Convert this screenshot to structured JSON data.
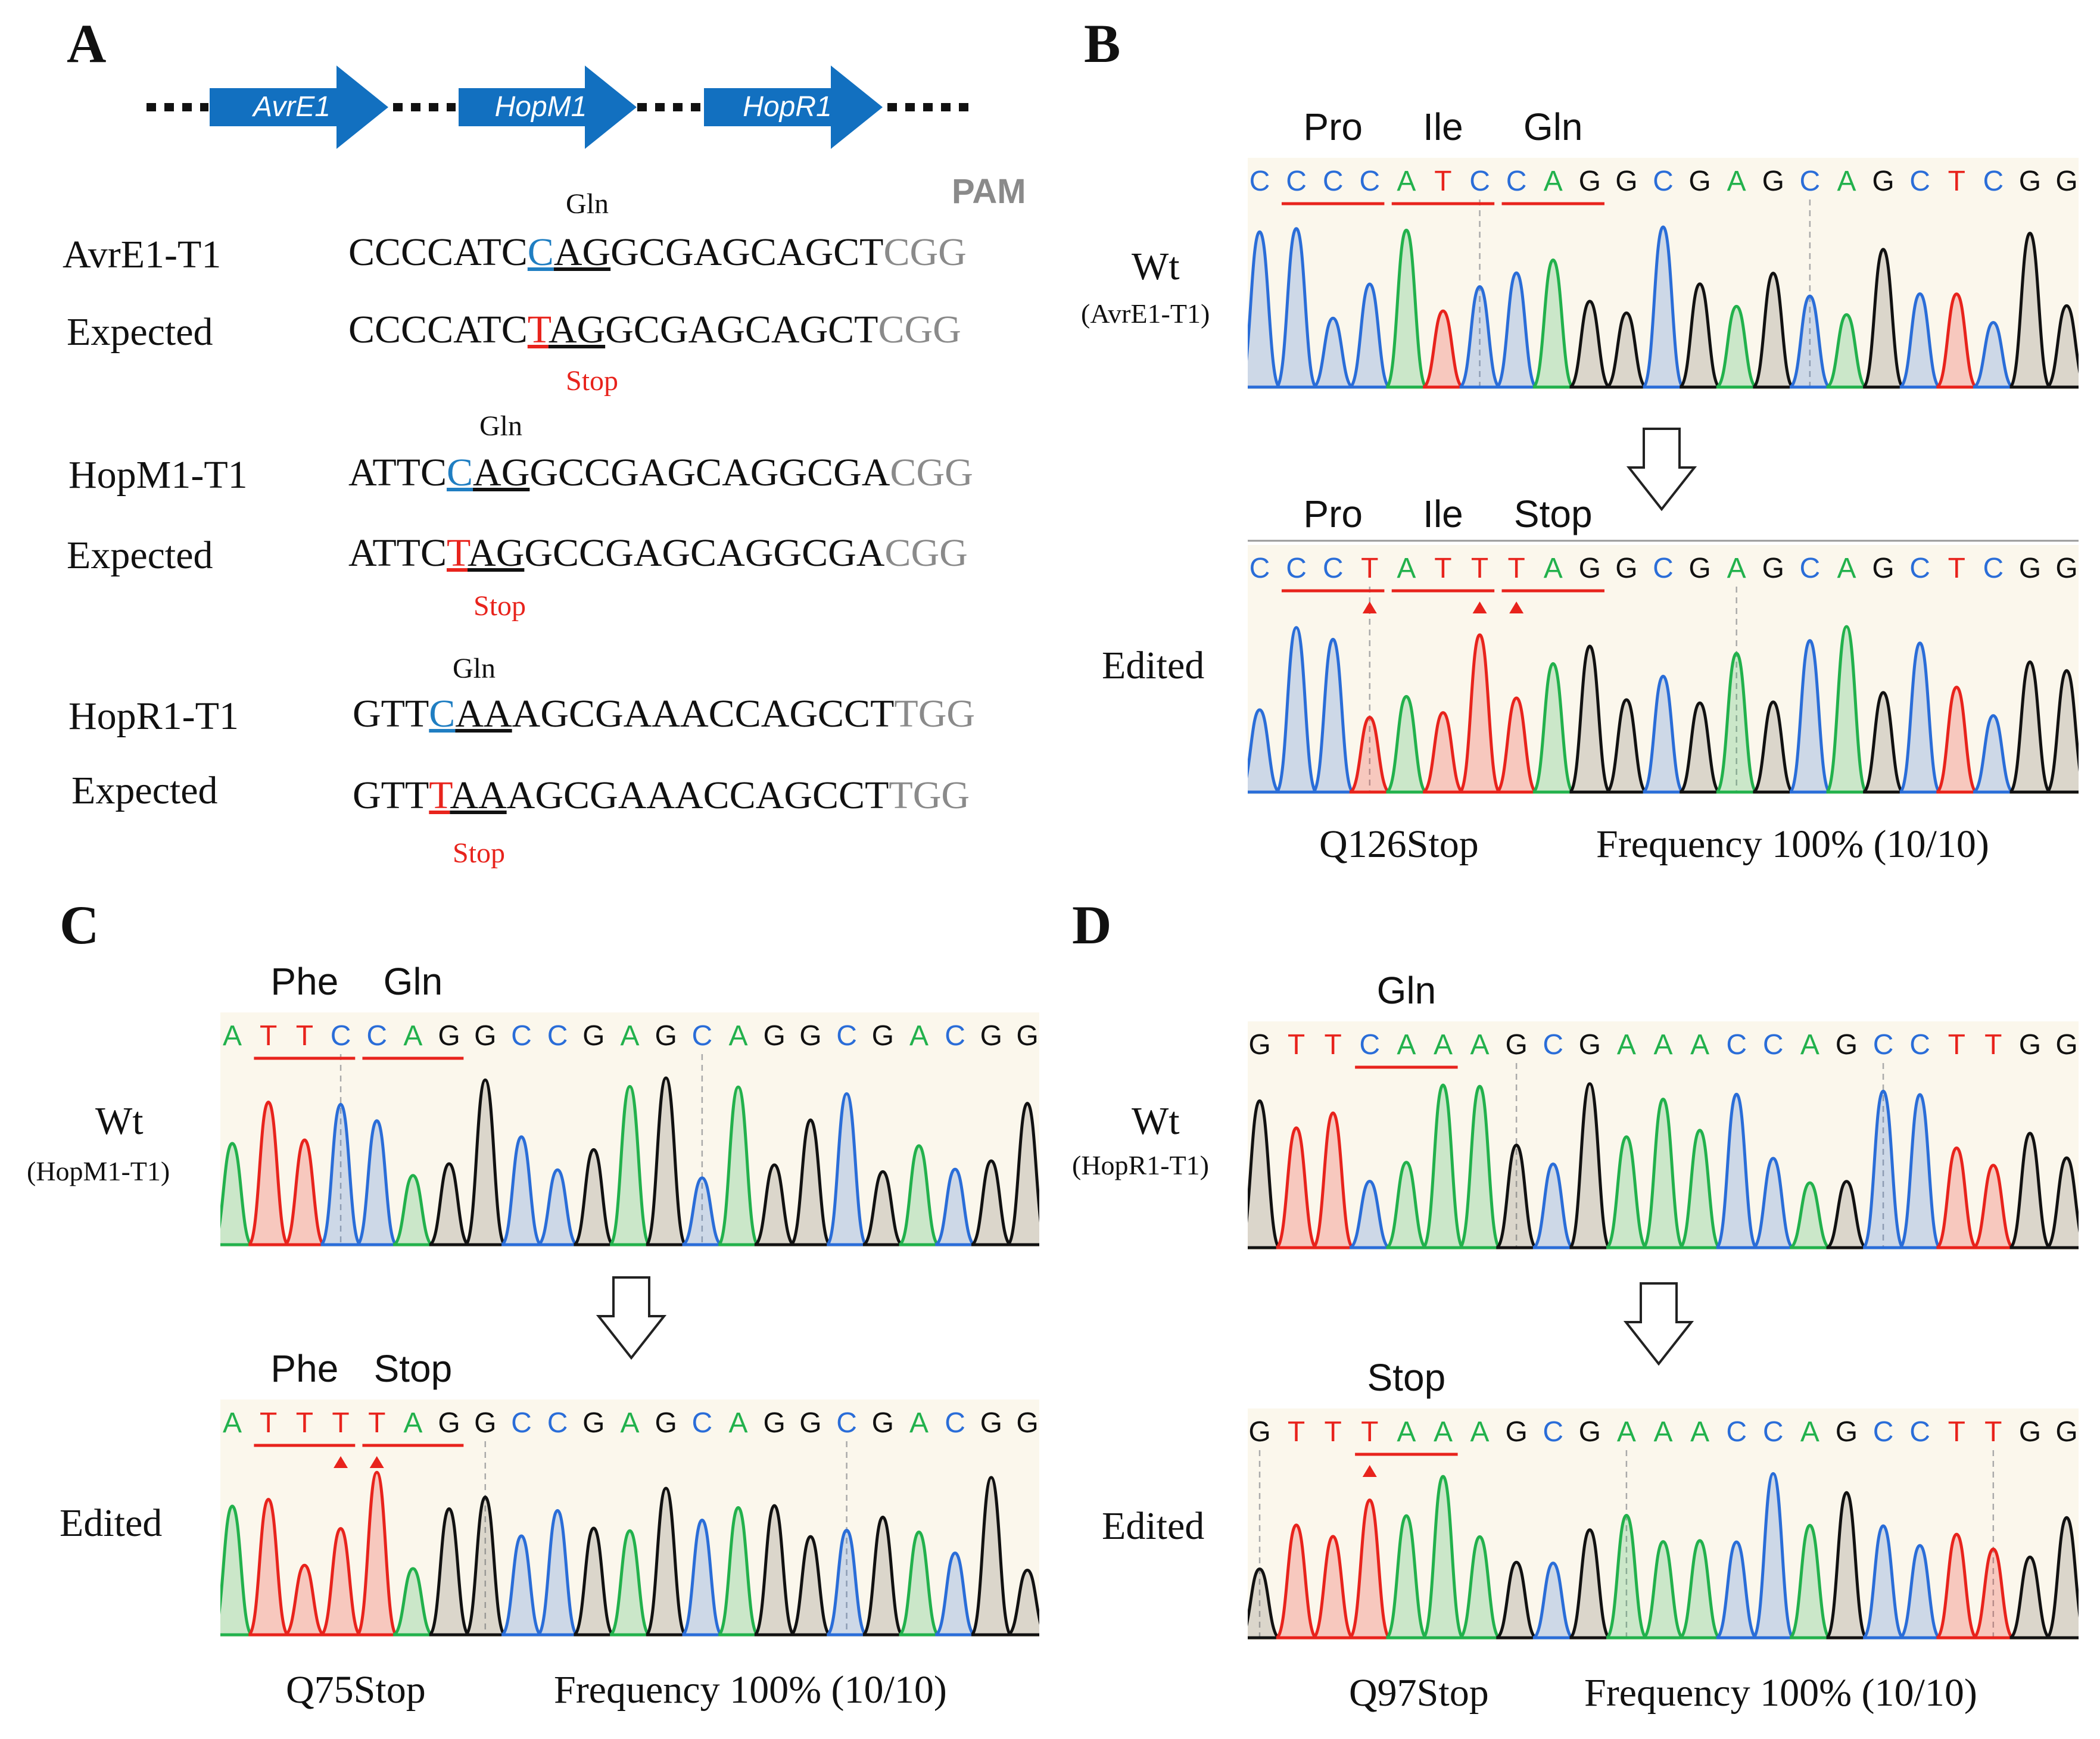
{
  "panels": {
    "A": {
      "letter": "A",
      "genes": [
        "AvrE1",
        "HopM1",
        "HopR1"
      ],
      "pam_label": "PAM",
      "rows": [
        {
          "name": "AvrE1-T1",
          "codon_label": "Gln",
          "pre": "CCCCATC",
          "mut": "C",
          "post": "AGGCGAGCAGCT",
          "pam": "CGG"
        },
        {
          "name": "Expected",
          "stop_label": "Stop",
          "pre": "CCCCATC",
          "mut": "T",
          "post": "AGGCGAGCAGCT",
          "pam": "CGG"
        },
        {
          "name": "HopM1-T1",
          "codon_label": "Gln",
          "pre": "ATTC",
          "mut": "C",
          "post": "AGGCCGAGCAGGCGA",
          "pam": "CGG"
        },
        {
          "name": "Expected",
          "stop_label": "Stop",
          "pre": "ATTC",
          "mut": "T",
          "post": "AGGCCGAGCAGGCGA",
          "pam": "CGG"
        },
        {
          "name": "HopR1-T1",
          "codon_label": "Gln",
          "pre": "GTT",
          "mut": "C",
          "post": "AAAGCGAAACCAGCCT",
          "pam": "TGG"
        },
        {
          "name": "Expected",
          "stop_label": "Stop",
          "pre": "GTT",
          "mut": "T",
          "post": "AAAGCGAAACCAGCCT",
          "pam": "TGG"
        }
      ]
    },
    "B": {
      "letter": "B",
      "wt_label": "Wt",
      "wt_sub": "(AvrE1-T1)",
      "edited_label": "Edited",
      "wt_codons": [
        "Pro",
        "Ile",
        "Gln"
      ],
      "ed_codons": [
        "Pro",
        "Ile",
        "Stop"
      ],
      "wt_seq": "CCCCATCCAGGCGAGCAGCTCGG",
      "ed_seq": "CCCTATTTAGGCGAGCAGCTCGG",
      "mutation": "Q126Stop",
      "frequency": "Frequency 100% (10/10)"
    },
    "C": {
      "letter": "C",
      "wt_label": "Wt",
      "wt_sub": "(HopM1-T1)",
      "edited_label": "Edited",
      "wt_codons": [
        "Phe",
        "Gln"
      ],
      "ed_codons": [
        "Phe",
        "Stop"
      ],
      "wt_seq": "ATTCCAGGCCGAGCAGGCGACGG",
      "ed_seq": "ATTTTAGGCCGAGCAGGCGACGG",
      "mutation": "Q75Stop",
      "frequency": "Frequency 100% (10/10)"
    },
    "D": {
      "letter": "D",
      "wt_label": "Wt",
      "wt_sub": "(HopR1-T1)",
      "edited_label": "Edited",
      "wt_codons": [
        "Gln"
      ],
      "ed_codons": [
        "Stop"
      ],
      "wt_seq": "GTTCAAAGCGAAACCAGCCTTGG",
      "ed_seq": "GTTTAAAGCGAAACCAGCCTTGG",
      "mutation": "Q97Stop",
      "frequency": "Frequency 100% (10/10)"
    }
  },
  "colors": {
    "A": "#22b14c",
    "C": "#2a6dd8",
    "G": "#111111",
    "T": "#e8231c",
    "arrow_blue": "#1270c0",
    "trace_bg": "#fbf7ec"
  }
}
